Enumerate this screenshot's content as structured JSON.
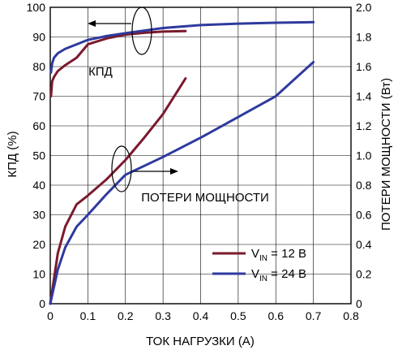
{
  "chart_data": {
    "type": "line",
    "xlabel": "ТОК НАГРУЗКИ (A)",
    "ylabel_left": "КПД (%)",
    "ylabel_right": "ПОТЕРИ МОЩНОСТИ (Вт)",
    "xlim": [
      0,
      0.8
    ],
    "ylim_left": [
      0,
      100
    ],
    "ylim_right": [
      0,
      2.0
    ],
    "x_ticks": [
      "0",
      "0.1",
      "0.2",
      "0.3",
      "0.4",
      "0.5",
      "0.6",
      "0.7",
      "0.8"
    ],
    "y_left_ticks": [
      "0",
      "10",
      "20",
      "30",
      "40",
      "50",
      "60",
      "70",
      "80",
      "90",
      "100"
    ],
    "y_right_ticks": [
      "0",
      "0.2",
      "0.4",
      "0.6",
      "0.8",
      "1.0",
      "1.2",
      "1.4",
      "1.6",
      "1.8",
      "2.0"
    ],
    "grid": true,
    "annotations": {
      "efficiency": "КПД",
      "power_loss": "ПОТЕРИ МОЩНОСТИ"
    },
    "legend": {
      "position": "bottom-right",
      "entries": [
        {
          "prefix": "V",
          "sub": "IN",
          "suffix": " = 12 В",
          "color": "#7a1a2e"
        },
        {
          "prefix": "V",
          "sub": "IN",
          "suffix": " = 24 В",
          "color": "#2e3a9e"
        }
      ]
    },
    "series": [
      {
        "label": "VIN = 12 В",
        "kind": "efficiency",
        "axis": "left",
        "color": "#7a1a2e",
        "x": [
          0.002,
          0.005,
          0.01,
          0.02,
          0.04,
          0.07,
          0.1,
          0.15,
          0.2,
          0.25,
          0.3,
          0.36
        ],
        "y": [
          70,
          75,
          76.5,
          78.5,
          80.5,
          83,
          87.5,
          89.5,
          90.8,
          91.4,
          91.8,
          92
        ]
      },
      {
        "label": "VIN = 24 В",
        "kind": "efficiency",
        "axis": "left",
        "color": "#2e3a9e",
        "x": [
          0.002,
          0.005,
          0.01,
          0.02,
          0.04,
          0.07,
          0.1,
          0.15,
          0.2,
          0.3,
          0.4,
          0.5,
          0.6,
          0.7
        ],
        "y": [
          78,
          81,
          83,
          84.5,
          86,
          87.5,
          89,
          90.3,
          91.3,
          93,
          94,
          94.5,
          94.8,
          95
        ]
      },
      {
        "label": "VIN = 12 В",
        "kind": "power_loss",
        "axis": "right",
        "color": "#7a1a2e",
        "x": [
          0,
          0.02,
          0.04,
          0.07,
          0.1,
          0.15,
          0.2,
          0.25,
          0.3,
          0.36
        ],
        "y": [
          0,
          0.34,
          0.52,
          0.67,
          0.73,
          0.84,
          0.97,
          1.12,
          1.28,
          1.52
        ]
      },
      {
        "label": "VIN = 24 В",
        "kind": "power_loss",
        "axis": "right",
        "color": "#2e3a9e",
        "x": [
          0,
          0.02,
          0.04,
          0.07,
          0.1,
          0.15,
          0.2,
          0.25,
          0.3,
          0.4,
          0.5,
          0.6,
          0.7
        ],
        "y": [
          0,
          0.23,
          0.38,
          0.52,
          0.6,
          0.74,
          0.87,
          0.93,
          0.99,
          1.12,
          1.26,
          1.4,
          1.63
        ]
      }
    ]
  }
}
